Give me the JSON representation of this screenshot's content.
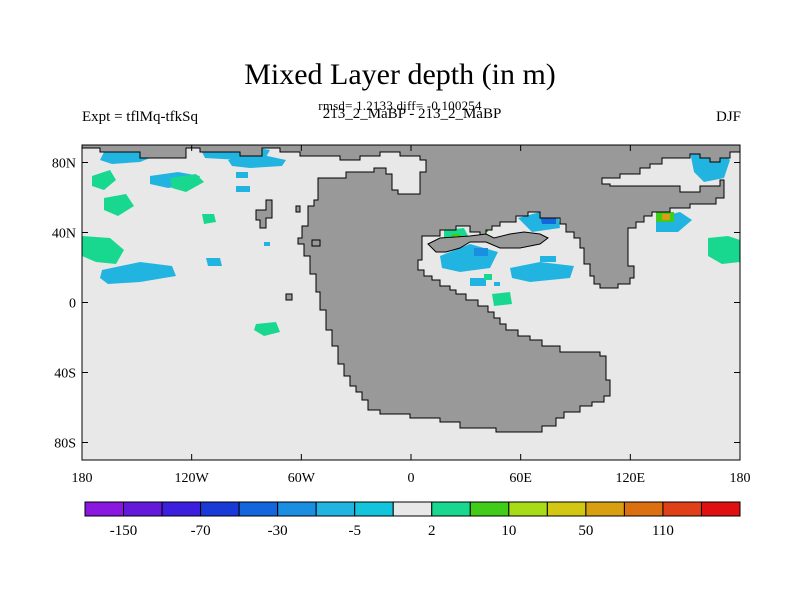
{
  "title": "Mixed Layer depth (in m)",
  "subtitle": "rmsd= 1.2133 diff= -0.100254",
  "left_label": "Expt = tflMq-tfkSq",
  "center_label": "213_2_MaBP - 213_2_MaBP",
  "right_label": "DJF",
  "colors": {
    "land": "#999999",
    "ocean_neutral": "#e8e8e8",
    "frame": "#000000"
  },
  "map": {
    "lon_range": [
      -180,
      180
    ],
    "lat_range": [
      -90,
      90
    ],
    "lat_ticks": [
      {
        "value": 80,
        "label": "80N"
      },
      {
        "value": 40,
        "label": "40N"
      },
      {
        "value": 0,
        "label": "0"
      },
      {
        "value": -40,
        "label": "40S"
      },
      {
        "value": -80,
        "label": "80S"
      }
    ],
    "lon_ticks": [
      {
        "value": -180,
        "label": "180"
      },
      {
        "value": -120,
        "label": "120W"
      },
      {
        "value": -60,
        "label": "60W"
      },
      {
        "value": 0,
        "label": "0"
      },
      {
        "value": 60,
        "label": "60E"
      },
      {
        "value": 120,
        "label": "120E"
      },
      {
        "value": 180,
        "label": "180"
      }
    ]
  },
  "colorbar": {
    "colors": [
      "#8a18e0",
      "#6418dc",
      "#3b1ede",
      "#1a3ad8",
      "#1466dc",
      "#1a8ee0",
      "#22b4e0",
      "#12c4dc",
      "#e8e8e8",
      "#18d890",
      "#40cc18",
      "#a8dc18",
      "#d2c814",
      "#d8a010",
      "#dc7010",
      "#e04018",
      "#e01010"
    ],
    "labels": [
      {
        "index": 1,
        "text": "-150"
      },
      {
        "index": 3,
        "text": "-70"
      },
      {
        "index": 5,
        "text": "-30"
      },
      {
        "index": 7,
        "text": "-5"
      },
      {
        "index": 9,
        "text": "2"
      },
      {
        "index": 11,
        "text": "10"
      },
      {
        "index": 13,
        "text": "50"
      },
      {
        "index": 15,
        "text": "110"
      }
    ]
  }
}
